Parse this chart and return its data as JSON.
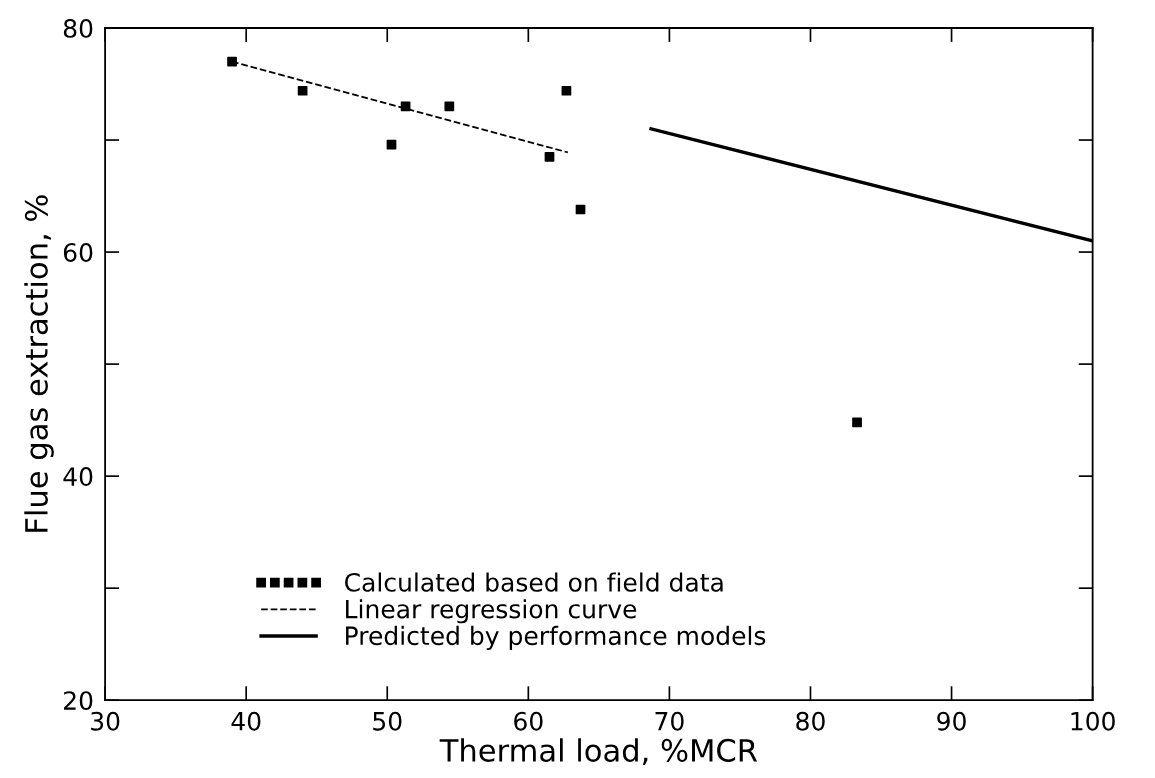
{
  "chart_data": {
    "type": "scatter",
    "xlabel": "Thermal load, %MCR",
    "ylabel": "Flue gas extraction, %",
    "xlim": [
      30,
      100
    ],
    "ylim": [
      20,
      80
    ],
    "xticks": [
      30,
      40,
      50,
      60,
      70,
      80,
      90,
      100
    ],
    "yticks": [
      20,
      {
        "value": 30,
        "label": null
      },
      40,
      {
        "value": 50,
        "label": null
      },
      60,
      {
        "value": 70,
        "label": null
      },
      80
    ],
    "grid": false,
    "legend": "bottom left",
    "series": [
      {
        "name": "Calculated based on field data",
        "marker": "square",
        "color": "#000000",
        "x": [
          39,
          44,
          50.3,
          51.3,
          54.4,
          61.5,
          62.7,
          63.7,
          83.3
        ],
        "values": [
          77,
          74.4,
          69.6,
          73,
          73,
          68.5,
          74.4,
          63.8,
          44.8
        ]
      },
      {
        "name": "Linear regression curve",
        "type": "line",
        "line_style": "dashed",
        "color": "#000000",
        "x": [
          39,
          62.8
        ],
        "values": [
          77,
          68.9
        ]
      },
      {
        "name": "Predicted by performance models",
        "type": "line",
        "line_style": "solid",
        "color": "#000000",
        "x": [
          68.7,
          100
        ],
        "values": [
          71,
          61
        ]
      }
    ]
  }
}
